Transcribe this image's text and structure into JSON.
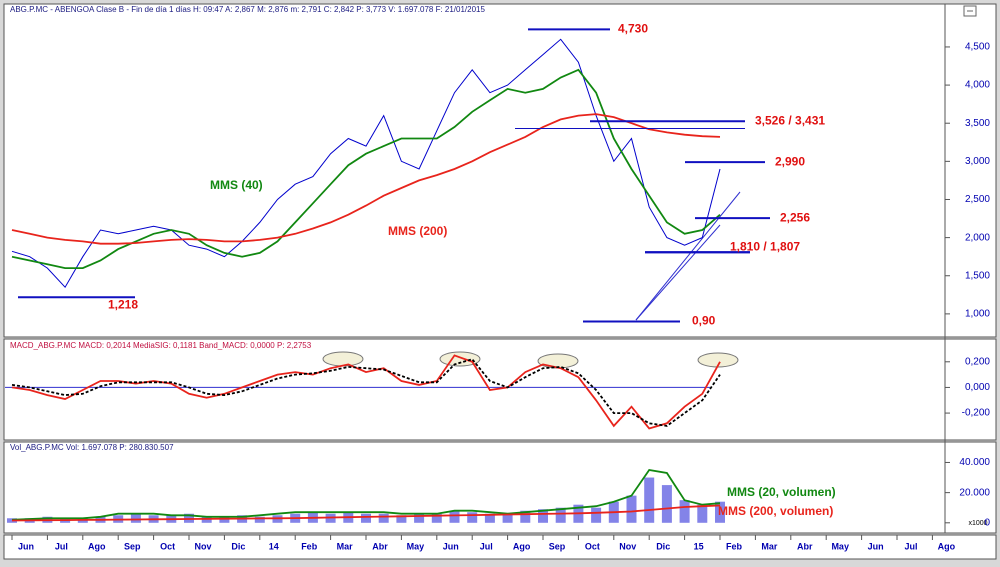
{
  "chart_data": {
    "type": "stock",
    "title": "ABG.P.MC - ABENGOA Clase B - Fin de día 1 días H: 09:47 A: 2,867 M: 2,876 m: 2,791 C: 2,842 P: 3,773 V: 1.697.078 F: 21/01/2015",
    "categories": [
      "Jun",
      null,
      "Jul",
      null,
      "Ago",
      null,
      "Sep",
      null,
      "Oct",
      null,
      "Nov",
      null,
      "Dic",
      null,
      "14",
      null,
      "Feb",
      null,
      "Mar",
      null,
      "Abr",
      null,
      "May",
      null,
      "Jun",
      null,
      "Jul",
      null,
      "Ago",
      null,
      "Sep",
      null,
      "Oct",
      null,
      "Nov",
      null,
      "Dic",
      null,
      "15",
      null,
      "Feb",
      null,
      "Mar",
      null,
      "Abr",
      null,
      "May",
      null,
      "Jun",
      null,
      "Jul",
      null,
      "Ago",
      null
    ],
    "panels": [
      {
        "type": "line",
        "ylim": [
          0.71,
          5.05
        ],
        "yticks": [
          {
            "value": 1,
            "label": "1,000"
          },
          {
            "value": 1.5,
            "label": "1,500"
          },
          {
            "value": 2,
            "label": "2,000"
          },
          {
            "value": 2.5,
            "label": "2,500"
          },
          {
            "value": 3,
            "label": "3,000"
          },
          {
            "value": 3.5,
            "label": "3,500"
          },
          {
            "value": 4,
            "label": "4,000"
          },
          {
            "value": 4.5,
            "label": "4,500"
          }
        ],
        "series": [
          {
            "color": "#0000cc",
            "values": [
              1.82,
              1.75,
              1.6,
              1.35,
              1.75,
              2.1,
              2.05,
              2.1,
              2.15,
              2.1,
              1.9,
              1.85,
              1.75,
              1.95,
              2.2,
              2.5,
              2.7,
              2.8,
              3.1,
              3.3,
              3.2,
              3.6,
              3.0,
              2.9,
              3.4,
              3.9,
              4.2,
              3.9,
              4.0,
              4.2,
              4.4,
              4.6,
              4.3,
              3.6,
              3.0,
              3.3,
              2.4,
              2.0,
              1.9,
              2.0,
              2.9,
              null,
              null,
              null,
              null,
              null,
              null,
              null,
              null,
              null,
              null,
              null,
              null,
              null
            ]
          },
          {
            "name": "MMS (40)",
            "color": "#118811",
            "values": [
              1.75,
              1.7,
              1.65,
              1.6,
              1.6,
              1.7,
              1.85,
              1.95,
              2.05,
              2.1,
              2.05,
              1.9,
              1.8,
              1.75,
              1.8,
              1.95,
              2.2,
              2.45,
              2.7,
              2.95,
              3.1,
              3.2,
              3.3,
              3.3,
              3.3,
              3.45,
              3.65,
              3.8,
              3.95,
              3.9,
              3.95,
              4.1,
              4.2,
              3.9,
              3.3,
              2.9,
              2.55,
              2.2,
              2.05,
              2.1,
              2.3,
              null,
              null,
              null,
              null,
              null,
              null,
              null,
              null,
              null,
              null,
              null,
              null,
              null
            ]
          },
          {
            "name": "MMS (200)",
            "color": "#e8241c",
            "values": [
              2.1,
              2.05,
              2.0,
              1.97,
              1.95,
              1.92,
              1.92,
              1.93,
              1.95,
              1.97,
              1.98,
              1.97,
              1.95,
              1.95,
              1.97,
              2.0,
              2.05,
              2.12,
              2.2,
              2.3,
              2.42,
              2.55,
              2.65,
              2.75,
              2.82,
              2.9,
              3.0,
              3.12,
              3.22,
              3.32,
              3.45,
              3.55,
              3.6,
              3.62,
              3.58,
              3.5,
              3.42,
              3.38,
              3.35,
              3.33,
              3.32,
              null,
              null,
              null,
              null,
              null,
              null,
              null,
              null,
              null,
              null,
              null,
              null,
              null
            ]
          }
        ],
        "annotations": [
          {
            "label": "4,730",
            "values": [
              4.73
            ]
          },
          {
            "label": "3,526 / 3,431",
            "values": [
              3.526,
              3.431
            ]
          },
          {
            "label": "2,990",
            "values": [
              2.99
            ]
          },
          {
            "label": "2,256",
            "values": [
              2.256
            ]
          },
          {
            "label": "1,810 / 1,807",
            "values": [
              1.81,
              1.807
            ]
          },
          {
            "label": "0,90",
            "values": [
              0.9
            ]
          },
          {
            "label": "1,218",
            "values": [
              1.218
            ]
          }
        ]
      },
      {
        "type": "line",
        "title": "MACD_ABG.P.MC MACD: 0,2014 MediaSIG: 0,1181 Band_MACD: 0,0000 P: 2,2753",
        "ylim": [
          -0.41,
          0.37
        ],
        "yticks": [
          {
            "value": -0.2,
            "label": "-0,200"
          },
          {
            "value": 0,
            "label": "0,000"
          },
          {
            "value": 0.2,
            "label": "0,200"
          }
        ],
        "series": [
          {
            "color": "#e8241c",
            "values": [
              0.0,
              -0.02,
              -0.06,
              -0.09,
              -0.02,
              0.05,
              0.05,
              0.03,
              0.05,
              0.03,
              -0.05,
              -0.08,
              -0.05,
              0.0,
              0.05,
              0.1,
              0.12,
              0.1,
              0.15,
              0.18,
              0.12,
              0.15,
              0.05,
              0.02,
              0.05,
              0.25,
              0.2,
              -0.02,
              0.0,
              0.12,
              0.18,
              0.15,
              0.08,
              -0.1,
              -0.3,
              -0.15,
              -0.32,
              -0.28,
              -0.15,
              -0.05,
              0.2,
              null,
              null,
              null,
              null,
              null,
              null,
              null,
              null,
              null,
              null,
              null,
              null,
              null
            ]
          },
          {
            "color": "#000000",
            "dashed": true,
            "values": [
              0.02,
              0.0,
              -0.03,
              -0.06,
              -0.05,
              0.01,
              0.04,
              0.04,
              0.04,
              0.04,
              0.0,
              -0.05,
              -0.06,
              -0.03,
              0.02,
              0.07,
              0.1,
              0.11,
              0.13,
              0.16,
              0.15,
              0.14,
              0.09,
              0.04,
              0.04,
              0.18,
              0.22,
              0.05,
              0.0,
              0.08,
              0.15,
              0.16,
              0.11,
              -0.02,
              -0.2,
              -0.2,
              -0.28,
              -0.3,
              -0.2,
              -0.1,
              0.1,
              null,
              null,
              null,
              null,
              null,
              null,
              null,
              null,
              null,
              null,
              null,
              null,
              null
            ]
          }
        ]
      },
      {
        "type": "bar",
        "title": "Vol_ABG.P.MC Vol: 1.697.078 P: 280.830.507",
        "unit_label": "x1000",
        "ylim": [
          -6100,
          52900
        ],
        "yticks": [
          0,
          {
            "value": 20000,
            "label": "20.000"
          },
          {
            "value": 40000,
            "label": "40.000"
          }
        ],
        "bar_color": "#5a5ae0",
        "values": [
          3000,
          3000,
          4000,
          3000,
          3000,
          4000,
          5000,
          6000,
          5000,
          5000,
          6000,
          4000,
          4000,
          5000,
          4000,
          5000,
          6000,
          7000,
          6000,
          7000,
          6000,
          6000,
          5000,
          6000,
          6000,
          8000,
          7000,
          6000,
          6000,
          8000,
          9000,
          10000,
          12000,
          10000,
          14000,
          18000,
          30000,
          25000,
          15000,
          12000,
          14000,
          null,
          null,
          null,
          null,
          null,
          null,
          null,
          null,
          null,
          null,
          null,
          null,
          null
        ],
        "series": [
          {
            "name": "MMS (20, volumen)",
            "color": "#118811",
            "values": [
              2000,
              2500,
              3000,
              3000,
              3000,
              4000,
              6000,
              6000,
              6000,
              5000,
              5000,
              4000,
              4000,
              4000,
              5000,
              6000,
              7000,
              7000,
              7000,
              7000,
              7000,
              7000,
              6000,
              6000,
              6000,
              8000,
              8000,
              7000,
              6000,
              7000,
              8000,
              9000,
              10000,
              11000,
              14000,
              18000,
              35000,
              33000,
              15000,
              12000,
              13000,
              null,
              null,
              null,
              null,
              null,
              null,
              null,
              null,
              null,
              null,
              null,
              null,
              null
            ]
          },
          {
            "name": "MMS (200, volumen)",
            "color": "#e8241c",
            "values": [
              1500,
              1600,
              1700,
              1800,
              1900,
              2000,
              2100,
              2200,
              2300,
              2400,
              2500,
              2600,
              2700,
              2800,
              2900,
              3000,
              3100,
              3300,
              3500,
              3700,
              3900,
              4100,
              4300,
              4500,
              4700,
              4900,
              5100,
              5300,
              5500,
              5700,
              5900,
              6100,
              6300,
              6600,
              7000,
              7500,
              8500,
              9500,
              10500,
              11000,
              11500,
              null,
              null,
              null,
              null,
              null,
              null,
              null,
              null,
              null,
              null,
              null,
              null,
              null
            ]
          }
        ]
      }
    ]
  }
}
